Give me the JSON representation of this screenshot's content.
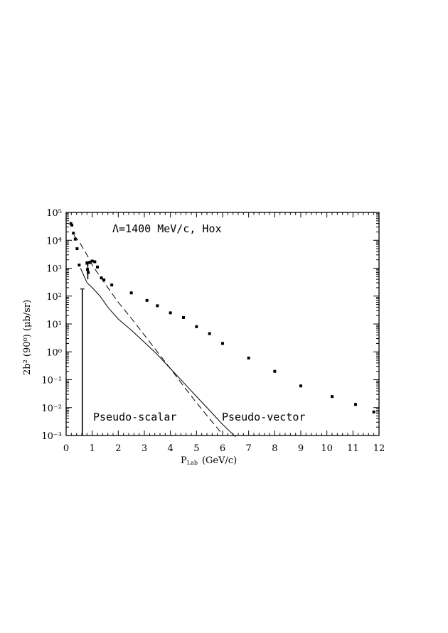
{
  "chart_data": {
    "type": "scatter",
    "xlabel": "P",
    "xlabel_sub": "Lab",
    "xlabel_unit": "(GeV/c)",
    "ylabel": "2b² (90⁰) (μb/sr)",
    "xlim": [
      0,
      12
    ],
    "ylim_log10": [
      -3,
      5
    ],
    "y_scale": "log",
    "grid": false,
    "x_ticks": [
      "0",
      "1",
      "2",
      "3",
      "4",
      "5",
      "6",
      "7",
      "8",
      "9",
      "10",
      "11",
      "12"
    ],
    "y_ticks": [
      "10⁻³",
      "10⁻²",
      "10⁻¹",
      "10⁰",
      "10¹",
      "10²",
      "10³",
      "10⁴",
      "10⁵"
    ],
    "annotations": {
      "top": "Λ=1400 MeV/c, Hox",
      "left": "Pseudo-scalar",
      "right": "Pseudo-vector"
    },
    "points": [
      {
        "x": 0.18,
        "y": 40000
      },
      {
        "x": 0.22,
        "y": 35000
      },
      {
        "x": 0.28,
        "y": 18000
      },
      {
        "x": 0.35,
        "y": 11000
      },
      {
        "x": 0.42,
        "y": 5000
      },
      {
        "x": 0.5,
        "y": 1300
      },
      {
        "x": 0.8,
        "y": 1500
      },
      {
        "x": 0.82,
        "y": 900
      },
      {
        "x": 0.85,
        "y": 700
      },
      {
        "x": 0.9,
        "y": 1600
      },
      {
        "x": 1.0,
        "y": 1800
      },
      {
        "x": 1.1,
        "y": 1700
      },
      {
        "x": 1.2,
        "y": 1100
      },
      {
        "x": 1.35,
        "y": 450
      },
      {
        "x": 1.45,
        "y": 380
      },
      {
        "x": 1.75,
        "y": 250
      },
      {
        "x": 2.5,
        "y": 130
      },
      {
        "x": 3.1,
        "y": 70
      },
      {
        "x": 3.5,
        "y": 45
      },
      {
        "x": 4.0,
        "y": 25
      },
      {
        "x": 4.5,
        "y": 17
      },
      {
        "x": 5.0,
        "y": 8
      },
      {
        "x": 5.5,
        "y": 4.5
      },
      {
        "x": 6.0,
        "y": 2
      },
      {
        "x": 7.0,
        "y": 0.6
      },
      {
        "x": 8.0,
        "y": 0.2
      },
      {
        "x": 9.0,
        "y": 0.06
      },
      {
        "x": 10.2,
        "y": 0.025
      },
      {
        "x": 11.1,
        "y": 0.013
      },
      {
        "x": 11.8,
        "y": 0.007
      }
    ],
    "error_bars": [
      {
        "x": 0.62,
        "low": 0.001,
        "high": 180
      },
      {
        "x": 0.83,
        "low": 400,
        "high": 1700
      }
    ],
    "series": [
      {
        "style": "solid",
        "x": [
          0.55,
          0.8,
          1.0,
          1.3,
          1.6,
          2.0,
          2.5,
          3.0,
          3.5,
          4.0,
          4.5,
          5.0,
          5.5,
          6.0,
          6.5
        ],
        "y": [
          1000,
          300,
          200,
          100,
          40,
          15,
          6,
          2.2,
          0.8,
          0.25,
          0.08,
          0.025,
          0.008,
          0.0025,
          0.0009
        ]
      },
      {
        "style": "dashed",
        "x": [
          0.3,
          0.5,
          0.8,
          1.0,
          1.3,
          1.6,
          2.0,
          2.5,
          3.0,
          3.5,
          4.0,
          4.5,
          5.0,
          5.5,
          6.0
        ],
        "y": [
          15000,
          9000,
          3000,
          1300,
          500,
          200,
          60,
          16,
          4,
          1,
          0.25,
          0.06,
          0.015,
          0.004,
          0.0011
        ]
      }
    ]
  }
}
